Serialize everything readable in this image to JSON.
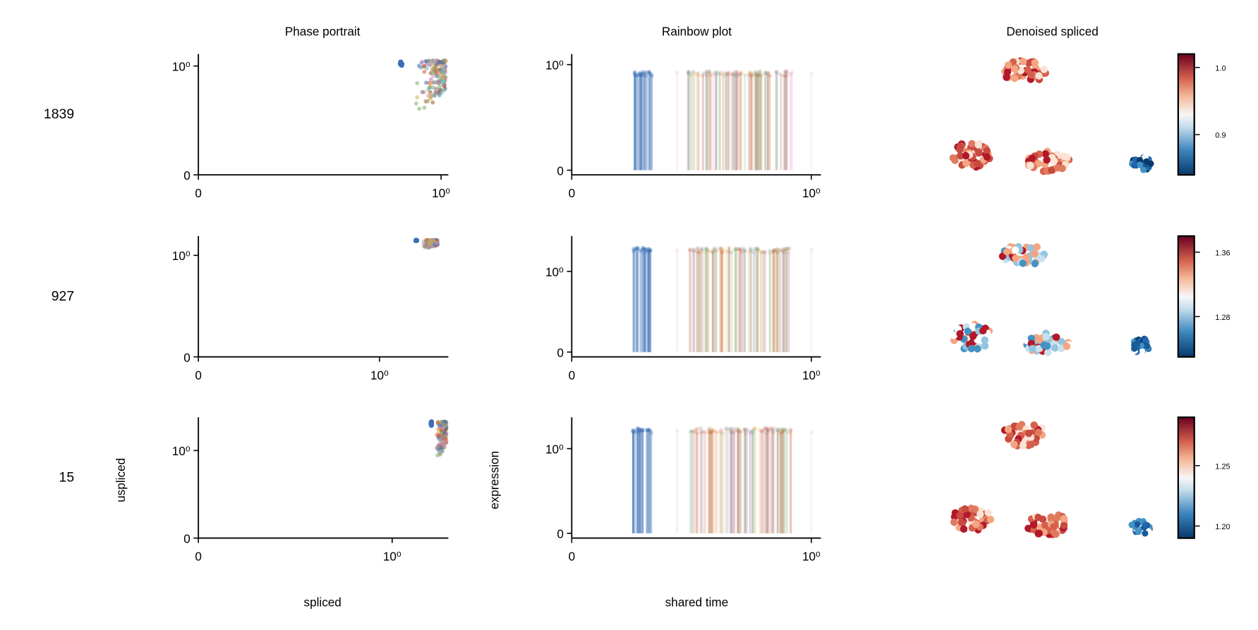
{
  "chart_data": {
    "type": "scatter",
    "columns": {
      "phase": {
        "title": "Phase portrait",
        "xlabel": "spliced",
        "ylabel": "uspliced"
      },
      "rainbow": {
        "title": "Rainbow plot",
        "xlabel": "shared time",
        "ylabel": "expression"
      },
      "umap": {
        "title": "Denoised spliced"
      }
    },
    "rows": [
      {
        "gene": "1839",
        "phase": {
          "xlim": [
            0,
            1.03
          ],
          "ylim": [
            0,
            1.11
          ],
          "xticks": [
            {
              "v": 0,
              "label": "0"
            },
            {
              "v": 1,
              "label": "10⁰"
            }
          ],
          "yticks": [
            {
              "v": 0,
              "label": "0"
            },
            {
              "v": 1,
              "label": "10⁰"
            }
          ],
          "cluster": {
            "x": [
              0.83,
              1.02
            ],
            "y": [
              0.6,
              1.05
            ]
          }
        },
        "rainbow": {
          "xlim": [
            0,
            1.04
          ],
          "ylim": [
            -0.044,
            1.1
          ],
          "xticks": [
            {
              "v": 0,
              "label": "0"
            },
            {
              "v": 1,
              "label": "10⁰"
            }
          ],
          "yticks": [
            {
              "v": 0,
              "label": "0"
            },
            {
              "v": 1,
              "label": "10⁰"
            }
          ],
          "level": 0.92
        },
        "umap": {
          "cluster_values": [
            "high",
            "high",
            "high",
            "low"
          ],
          "colorbar": {
            "range": [
              0.84,
              1.02
            ],
            "ticks": [
              {
                "v": 1.0,
                "label": "1.0"
              },
              {
                "v": 0.9,
                "label": "0.9"
              }
            ]
          }
        }
      },
      {
        "gene": "927",
        "phase": {
          "xlim": [
            0,
            1.38
          ],
          "ylim": [
            0,
            1.19
          ],
          "xticks": [
            {
              "v": 0,
              "label": "0"
            },
            {
              "v": 1,
              "label": "10⁰"
            }
          ],
          "yticks": [
            {
              "v": 0,
              "label": "0"
            },
            {
              "v": 1,
              "label": "10⁰"
            }
          ],
          "cluster": {
            "x": [
              1.2,
              1.32
            ],
            "y": [
              1.07,
              1.15
            ]
          }
        },
        "rainbow": {
          "xlim": [
            0,
            1.04
          ],
          "ylim": [
            -0.06,
            1.44
          ],
          "xticks": [
            {
              "v": 0,
              "label": "0"
            },
            {
              "v": 1,
              "label": "10⁰"
            }
          ],
          "yticks": [
            {
              "v": 0,
              "label": "0"
            },
            {
              "v": 1,
              "label": "10⁰"
            }
          ],
          "level": 1.27
        },
        "umap": {
          "cluster_values": [
            "mid",
            "mid",
            "mid",
            "low"
          ],
          "colorbar": {
            "range": [
              1.23,
              1.38
            ],
            "ticks": [
              {
                "v": 1.36,
                "label": "1.36"
              },
              {
                "v": 1.28,
                "label": "1.28"
              }
            ]
          }
        }
      },
      {
        "gene": "15",
        "phase": {
          "xlim": [
            0,
            1.29
          ],
          "ylim": [
            0,
            1.38
          ],
          "xticks": [
            {
              "v": 0,
              "label": "0"
            },
            {
              "v": 1,
              "label": "10⁰"
            }
          ],
          "yticks": [
            {
              "v": 0,
              "label": "0"
            },
            {
              "v": 1,
              "label": "10⁰"
            }
          ],
          "cluster": {
            "x": [
              1.2,
              1.28
            ],
            "y": [
              0.93,
              1.33
            ]
          }
        },
        "rainbow": {
          "xlim": [
            0,
            1.04
          ],
          "ylim": [
            -0.057,
            1.37
          ],
          "xticks": [
            {
              "v": 0,
              "label": "0"
            },
            {
              "v": 1,
              "label": "10⁰"
            }
          ],
          "yticks": [
            {
              "v": 0,
              "label": "0"
            },
            {
              "v": 1,
              "label": "10⁰"
            }
          ],
          "level": 1.22
        },
        "umap": {
          "cluster_values": [
            "high",
            "high",
            "high",
            "low"
          ],
          "colorbar": {
            "range": [
              1.19,
              1.29
            ],
            "ticks": [
              {
                "v": 1.25,
                "label": "1.25"
              },
              {
                "v": 1.2,
                "label": "1.20"
              }
            ]
          }
        }
      }
    ],
    "palette": [
      "#3b6fb6",
      "#d65a4a",
      "#7fae6a",
      "#b07ab8",
      "#e6a33e",
      "#8c8c8c",
      "#e58fb5",
      "#6bb7c4",
      "#c9b25a",
      "#a0522d"
    ]
  }
}
